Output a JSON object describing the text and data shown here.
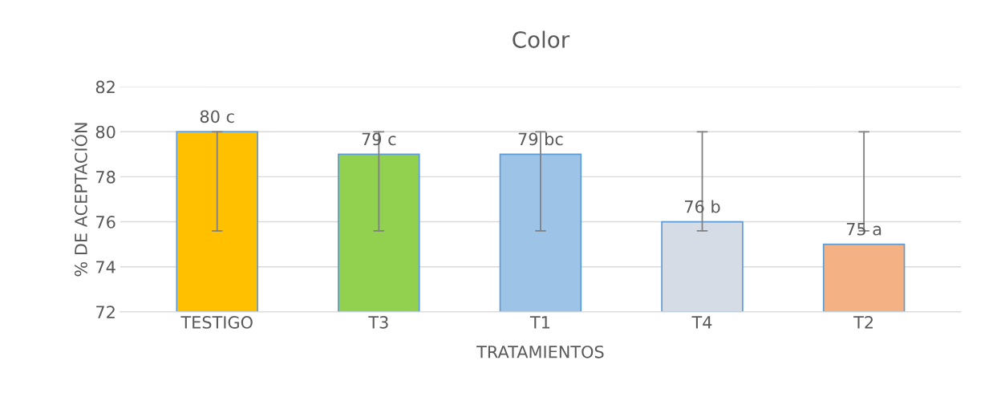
{
  "chart_data": {
    "type": "bar",
    "title": "Color",
    "xlabel": "TRATAMIENTOS",
    "ylabel": "% DE ACEPTACIÓN",
    "categories": [
      "TESTIGO",
      "T3",
      "T1",
      "T4",
      "T2"
    ],
    "values": [
      80,
      79,
      79,
      76,
      75
    ],
    "colors": [
      "#ffc000",
      "#92d050",
      "#9dc3e6",
      "#d6dce5",
      "#f4b183"
    ],
    "errors": [
      [
        75.6,
        80
      ],
      [
        75.6,
        80
      ],
      [
        75.6,
        80
      ],
      [
        75.6,
        80
      ],
      [
        75.6,
        80
      ]
    ],
    "value_labels": [
      "80 c",
      "79 c",
      "79 bc",
      "76 b",
      "75 a"
    ],
    "ylim": [
      72,
      82
    ],
    "yticks": [
      72,
      74,
      76,
      78,
      80,
      82
    ],
    "grid": "y",
    "legend": false
  }
}
